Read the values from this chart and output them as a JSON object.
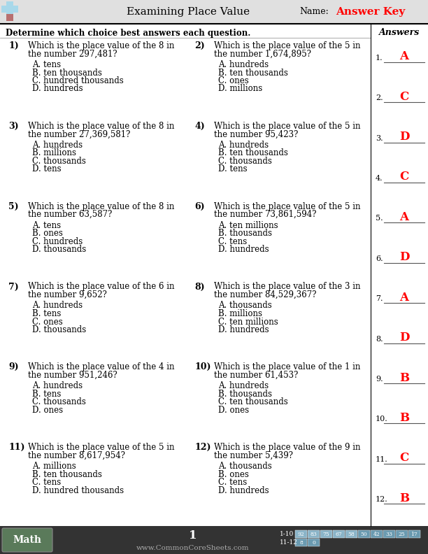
{
  "title": "Examining Place Value",
  "name_label": "Name:",
  "answer_key_text": "Answer Key",
  "instruction": "Determine which choice best answers each question.",
  "answers_header": "Answers",
  "page_number": "1",
  "website": "www.CommonCoreSheets.com",
  "subject": "Math",
  "score_labels": [
    "1-10",
    "11-12"
  ],
  "score_row1_vals": [
    "92",
    "83",
    "75",
    "67",
    "58",
    "50",
    "42",
    "33",
    "25",
    "17"
  ],
  "score_row2_vals": [
    "8",
    "0"
  ],
  "answers": [
    "A",
    "C",
    "D",
    "C",
    "A",
    "D",
    "A",
    "D",
    "B",
    "B",
    "C",
    "B"
  ],
  "questions": [
    {
      "num": "1)",
      "text1": "Which is the place value of the 8 in",
      "text2": "the number 297,481?",
      "choices": [
        "A. tens",
        "B. ten thousands",
        "C. hundred thousands",
        "D. hundreds"
      ]
    },
    {
      "num": "2)",
      "text1": "Which is the place value of the 5 in",
      "text2": "the number 1,674,895?",
      "choices": [
        "A. hundreds",
        "B. ten thousands",
        "C. ones",
        "D. millions"
      ]
    },
    {
      "num": "3)",
      "text1": "Which is the place value of the 8 in",
      "text2": "the number 27,369,581?",
      "choices": [
        "A. hundreds",
        "B. millions",
        "C. thousands",
        "D. tens"
      ]
    },
    {
      "num": "4)",
      "text1": "Which is the place value of the 5 in",
      "text2": "the number 95,423?",
      "choices": [
        "A. hundreds",
        "B. ten thousands",
        "C. thousands",
        "D. tens"
      ]
    },
    {
      "num": "5)",
      "text1": "Which is the place value of the 8 in",
      "text2": "the number 63,587?",
      "choices": [
        "A. tens",
        "B. ones",
        "C. hundreds",
        "D. thousands"
      ]
    },
    {
      "num": "6)",
      "text1": "Which is the place value of the 5 in",
      "text2": "the number 73,861,594?",
      "choices": [
        "A. ten millions",
        "B. thousands",
        "C. tens",
        "D. hundreds"
      ]
    },
    {
      "num": "7)",
      "text1": "Which is the place value of the 6 in",
      "text2": "the number 9,652?",
      "choices": [
        "A. hundreds",
        "B. tens",
        "C. ones",
        "D. thousands"
      ]
    },
    {
      "num": "8)",
      "text1": "Which is the place value of the 3 in",
      "text2": "the number 84,529,367?",
      "choices": [
        "A. thousands",
        "B. millions",
        "C. ten millions",
        "D. hundreds"
      ]
    },
    {
      "num": "9)",
      "text1": "Which is the place value of the 4 in",
      "text2": "the number 951,246?",
      "choices": [
        "A. hundreds",
        "B. tens",
        "C. thousands",
        "D. ones"
      ]
    },
    {
      "num": "10)",
      "text1": "Which is the place value of the 1 in",
      "text2": "the number 61,453?",
      "choices": [
        "A. hundreds",
        "B. thousands",
        "C. ten thousands",
        "D. ones"
      ]
    },
    {
      "num": "11)",
      "text1": "Which is the place value of the 5 in",
      "text2": "the number 8,617,954?",
      "choices": [
        "A. millions",
        "B. ten thousands",
        "C. tens",
        "D. hundred thousands"
      ]
    },
    {
      "num": "12)",
      "text1": "Which is the place value of the 9 in",
      "text2": "the number 5,439?",
      "choices": [
        "A. thousands",
        "B. ones",
        "C. tens",
        "D. hundreds"
      ]
    }
  ],
  "bg_color": "#ffffff",
  "header_line_color": "#000000",
  "answer_color": "#ff0000",
  "text_color": "#000000",
  "cross_color_light": "#a8d8ea",
  "cross_color_dark": "#b87070",
  "footer_bg": "#333333",
  "footer_text_color": "#ffffff",
  "math_box_color": "#5a7a5a",
  "score_highlight_color": "#8ab4c8",
  "score_highlight2_color": "#6a9ab0"
}
